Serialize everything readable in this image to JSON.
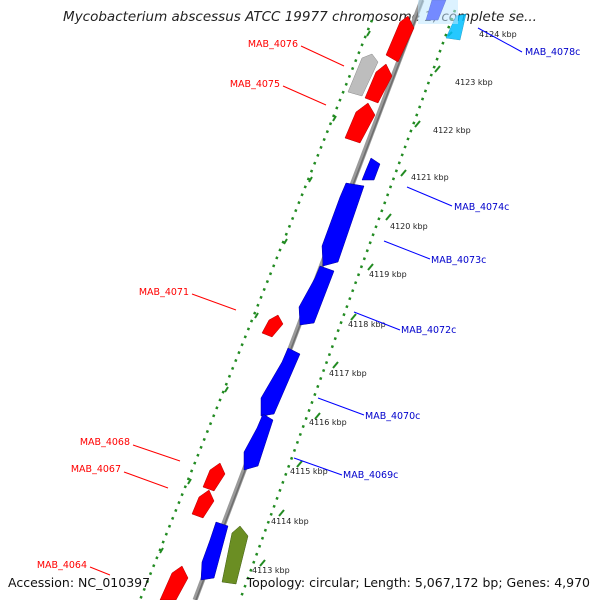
{
  "title": "Mycobacterium abscessus ATCC 19977 chromosome 1, complete se...",
  "footer": {
    "accession": "Accession: NC_010397",
    "summary": "Topology: circular; Length: 5,067,172 bp; Genes: 4,970"
  },
  "colors": {
    "forward_gene": "#ff0000",
    "reverse_gene": "#0000ff",
    "pseudo_gene": "#b3b3b3",
    "rna_gene": "#6b8e23",
    "highlight": "#00bfff",
    "backbone": "#888888",
    "ruler": "#228b22"
  },
  "ruler_ticks": [
    {
      "label": "4113 kbp"
    },
    {
      "label": "4114 kbp"
    },
    {
      "label": "4115 kbp"
    },
    {
      "label": "4116 kbp"
    },
    {
      "label": "4117 kbp"
    },
    {
      "label": "4118 kbp"
    },
    {
      "label": "4119 kbp"
    },
    {
      "label": "4120 kbp"
    },
    {
      "label": "4121 kbp"
    },
    {
      "label": "4122 kbp"
    },
    {
      "label": "4123 kbp"
    },
    {
      "label": "4124 kbp"
    }
  ],
  "gene_labels": [
    {
      "text": "MAB_4076",
      "strand": "forward"
    },
    {
      "text": "MAB_4075",
      "strand": "forward"
    },
    {
      "text": "MAB_4071",
      "strand": "forward"
    },
    {
      "text": "MAB_4068",
      "strand": "forward"
    },
    {
      "text": "MAB_4067",
      "strand": "forward"
    },
    {
      "text": "MAB_4064",
      "strand": "forward"
    },
    {
      "text": "MAB_4078c",
      "strand": "reverse"
    },
    {
      "text": "MAB_4074c",
      "strand": "reverse"
    },
    {
      "text": "MAB_4073c",
      "strand": "reverse"
    },
    {
      "text": "MAB_4072c",
      "strand": "reverse"
    },
    {
      "text": "MAB_4070c",
      "strand": "reverse"
    },
    {
      "text": "MAB_4069c",
      "strand": "reverse"
    }
  ]
}
